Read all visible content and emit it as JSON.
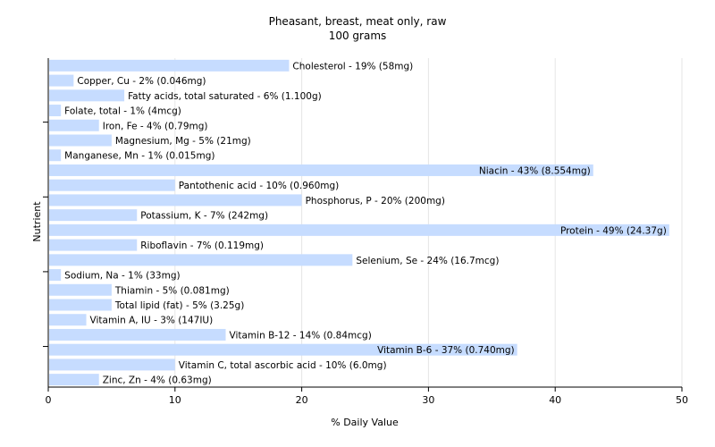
{
  "chart_data": {
    "type": "bar",
    "orientation": "horizontal",
    "title": "Pheasant, breast, meat only, raw",
    "subtitle": "100 grams",
    "xlabel": "% Daily Value",
    "ylabel": "Nutrient",
    "xlim": [
      0,
      50
    ],
    "xticks": [
      "0",
      "10",
      "20",
      "30",
      "40",
      "50"
    ],
    "grid": true,
    "bar_color": "#c6dcff",
    "categories": [
      "Cholesterol",
      "Copper, Cu",
      "Fatty acids, total saturated",
      "Folate, total",
      "Iron, Fe",
      "Magnesium, Mg",
      "Manganese, Mn",
      "Niacin",
      "Pantothenic acid",
      "Phosphorus, P",
      "Potassium, K",
      "Protein",
      "Riboflavin",
      "Selenium, Se",
      "Sodium, Na",
      "Thiamin",
      "Total lipid (fat)",
      "Vitamin A, IU",
      "Vitamin B-12",
      "Vitamin B-6",
      "Vitamin C, total ascorbic acid",
      "Zinc, Zn"
    ],
    "values": [
      19,
      2,
      6,
      1,
      4,
      5,
      1,
      43,
      10,
      20,
      7,
      49,
      7,
      24,
      1,
      5,
      5,
      3,
      14,
      37,
      10,
      4
    ],
    "labels": [
      "Cholesterol - 19% (58mg)",
      "Copper, Cu - 2% (0.046mg)",
      "Fatty acids, total saturated - 6% (1.100g)",
      "Folate, total - 1% (4mcg)",
      "Iron, Fe - 4% (0.79mg)",
      "Magnesium, Mg - 5% (21mg)",
      "Manganese, Mn - 1% (0.015mg)",
      "Niacin - 43% (8.554mg)",
      "Pantothenic acid - 10% (0.960mg)",
      "Phosphorus, P - 20% (200mg)",
      "Potassium, K - 7% (242mg)",
      "Protein - 49% (24.37g)",
      "Riboflavin - 7% (0.119mg)",
      "Selenium, Se - 24% (16.7mcg)",
      "Sodium, Na - 1% (33mg)",
      "Thiamin - 5% (0.081mg)",
      "Total lipid (fat) - 5% (3.25g)",
      "Vitamin A, IU - 3% (147IU)",
      "Vitamin B-12 - 14% (0.84mcg)",
      "Vitamin B-6 - 37% (0.740mg)",
      "Vitamin C, total ascorbic acid - 10% (6.0mg)",
      "Zinc, Zn - 4% (0.63mg)"
    ]
  }
}
